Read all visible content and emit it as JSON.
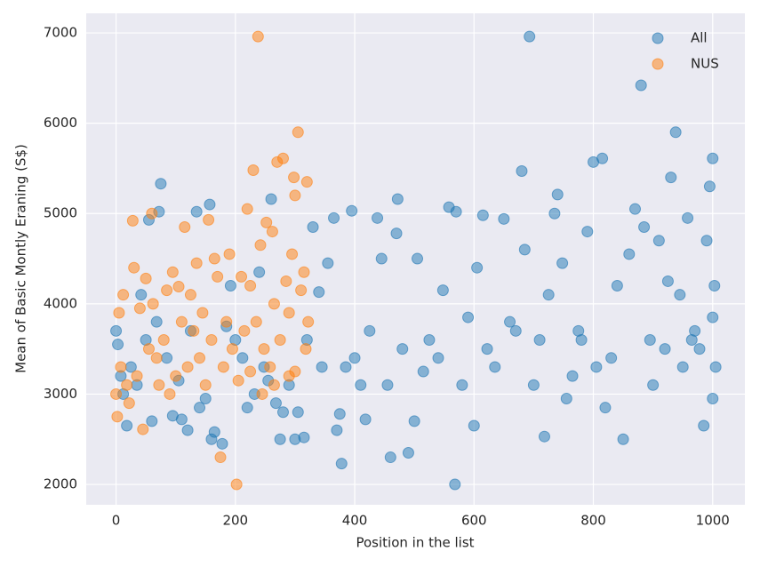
{
  "chart_data": {
    "type": "scatter",
    "xlabel": "Position in the list",
    "ylabel": "Mean of Basic Montly Eraning (S$)",
    "xlim": [
      -50,
      1054
    ],
    "ylim": [
      1774,
      7217
    ],
    "xticks": [
      0,
      200,
      400,
      600,
      800,
      1000
    ],
    "yticks": [
      2000,
      3000,
      4000,
      5000,
      6000,
      7000
    ],
    "grid": true,
    "legend": "upper right",
    "series": [
      {
        "name": "All",
        "color": "#1f77b4",
        "x": [
          0,
          3,
          8,
          12,
          18,
          25,
          35,
          42,
          50,
          55,
          60,
          68,
          75,
          72,
          85,
          95,
          105,
          110,
          120,
          125,
          135,
          140,
          150,
          157,
          160,
          165,
          178,
          185,
          192,
          200,
          212,
          220,
          232,
          240,
          248,
          255,
          260,
          268,
          275,
          280,
          290,
          300,
          305,
          315,
          320,
          330,
          340,
          345,
          355,
          365,
          370,
          375,
          378,
          385,
          395,
          400,
          410,
          418,
          425,
          438,
          445,
          455,
          460,
          470,
          472,
          480,
          490,
          500,
          505,
          515,
          525,
          540,
          548,
          558,
          568,
          570,
          580,
          590,
          600,
          605,
          615,
          622,
          635,
          650,
          660,
          670,
          680,
          685,
          693,
          700,
          710,
          718,
          725,
          735,
          740,
          748,
          755,
          765,
          775,
          780,
          790,
          800,
          805,
          815,
          820,
          830,
          840,
          850,
          860,
          870,
          880,
          885,
          895,
          900,
          910,
          920,
          925,
          930,
          938,
          945,
          950,
          958,
          965,
          970,
          978,
          985,
          990,
          995,
          1000,
          1000,
          1003,
          1005,
          1000
        ],
        "values": [
          3700,
          3550,
          3200,
          3000,
          2650,
          3300,
          3100,
          4100,
          3600,
          4930,
          2700,
          3800,
          5330,
          5020,
          3400,
          2760,
          3150,
          2720,
          2600,
          3700,
          5020,
          2850,
          2950,
          5100,
          2500,
          2580,
          2450,
          3750,
          4200,
          3600,
          3400,
          2850,
          3000,
          4350,
          3300,
          3150,
          5160,
          2900,
          2500,
          2800,
          3100,
          2500,
          2800,
          2520,
          3600,
          4850,
          4130,
          3300,
          4450,
          4950,
          2600,
          2780,
          2230,
          3300,
          5030,
          3400,
          3100,
          2720,
          3700,
          4950,
          4500,
          3100,
          2300,
          4780,
          5160,
          3500,
          2350,
          2700,
          4500,
          3250,
          3600,
          3400,
          4150,
          5070,
          2000,
          5020,
          3100,
          3850,
          2650,
          4400,
          4980,
          3500,
          3300,
          4940,
          3800,
          3700,
          5470,
          4600,
          6960,
          3100,
          3600,
          2530,
          4100,
          5000,
          5210,
          4450,
          2950,
          3200,
          3700,
          3600,
          4800,
          5570,
          3300,
          5610,
          2850,
          3400,
          4200,
          2500,
          4550,
          5050,
          6420,
          4850,
          3600,
          3100,
          4700,
          3500,
          4250,
          5400,
          5900,
          4100,
          3300,
          4950,
          3600,
          3700,
          3500,
          2650,
          4700,
          5300,
          5610,
          2950,
          4200,
          3300,
          3850
        ]
      },
      {
        "name": "NUS",
        "color": "#ff7f0e",
        "x": [
          0,
          2,
          5,
          8,
          12,
          18,
          22,
          28,
          30,
          35,
          40,
          45,
          50,
          55,
          60,
          62,
          68,
          72,
          80,
          85,
          90,
          95,
          100,
          105,
          110,
          115,
          120,
          125,
          130,
          135,
          140,
          145,
          150,
          155,
          160,
          165,
          170,
          175,
          180,
          185,
          190,
          195,
          202,
          205,
          210,
          215,
          220,
          225,
          230,
          235,
          238,
          242,
          248,
          252,
          258,
          262,
          265,
          270,
          275,
          280,
          285,
          290,
          295,
          298,
          300,
          305,
          310,
          315,
          320,
          322,
          318,
          300,
          290,
          265,
          245,
          225
        ],
        "values": [
          3000,
          2750,
          3900,
          3300,
          4100,
          3100,
          2900,
          4920,
          4400,
          3200,
          3950,
          2610,
          4280,
          3500,
          5000,
          4000,
          3400,
          3100,
          3600,
          4150,
          3000,
          4350,
          3200,
          4190,
          3800,
          4850,
          3300,
          4100,
          3700,
          4450,
          3400,
          3900,
          3100,
          4930,
          3600,
          4500,
          4300,
          2300,
          3300,
          3800,
          4550,
          3500,
          2000,
          3150,
          4300,
          3700,
          5050,
          4200,
          5480,
          3800,
          6960,
          4650,
          3500,
          4900,
          3300,
          4800,
          4000,
          5570,
          3600,
          5610,
          4250,
          3900,
          4550,
          5400,
          5200,
          5900,
          4150,
          4350,
          5350,
          3800,
          3500,
          3250,
          3200,
          3100,
          3000,
          3250
        ]
      }
    ]
  }
}
